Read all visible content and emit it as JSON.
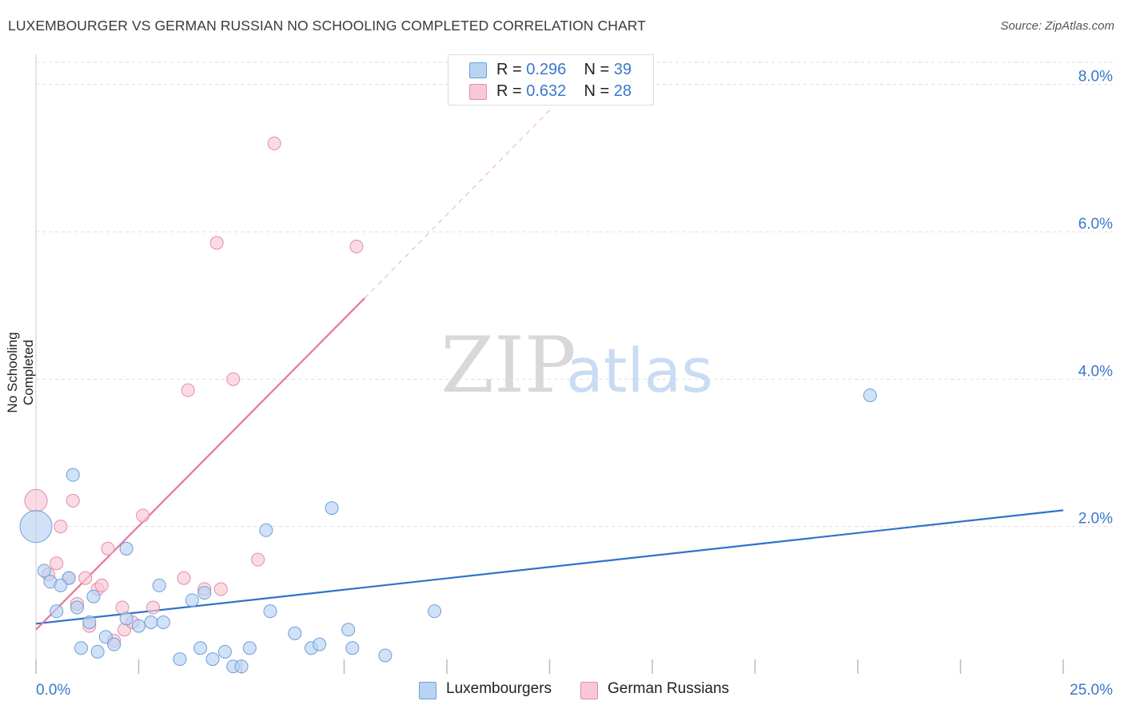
{
  "title": "LUXEMBOURGER VS GERMAN RUSSIAN NO SCHOOLING COMPLETED CORRELATION CHART",
  "source": "Source: ZipAtlas.com",
  "colors": {
    "blue_fill": "#b8d3f3",
    "blue_stroke": "#6c9fd8",
    "blue_line": "#2f72cc",
    "pink_fill": "#f8c8d6",
    "pink_stroke": "#e68aa8",
    "pink_line": "#e8769c",
    "axis_text": "#3a78c9",
    "grid": "#dddddd"
  },
  "legend": {
    "rows": [
      {
        "r_label": "R = ",
        "r_value": "0.296",
        "n_label": "N = ",
        "n_value": "39"
      },
      {
        "r_label": "R = ",
        "r_value": "0.632",
        "n_label": "N = ",
        "n_value": "28"
      }
    ]
  },
  "bottom_legend": {
    "series1": "Luxembourgers",
    "series2": "German Russians"
  },
  "watermark": {
    "part1": "ZIP",
    "part2": "atlas"
  },
  "chart_data": {
    "type": "scatter",
    "title": "LUXEMBOURGER VS GERMAN RUSSIAN NO SCHOOLING COMPLETED CORRELATION CHART",
    "xlabel": "",
    "ylabel": "No Schooling Completed",
    "xlim": [
      0,
      25
    ],
    "ylim": [
      0,
      8.3
    ],
    "x_tick_labels": [
      "0.0%",
      "25.0%"
    ],
    "y_ticks": [
      2,
      4,
      6,
      8
    ],
    "y_tick_labels": [
      "2.0%",
      "4.0%",
      "6.0%",
      "8.0%"
    ],
    "grid": true,
    "series": [
      {
        "name": "Luxembourgers",
        "r": 0.296,
        "n": 39,
        "trend": {
          "x": [
            0,
            25
          ],
          "y": [
            0.68,
            2.22
          ]
        },
        "points": [
          {
            "x": 0.0,
            "y": 2.0,
            "s": 3
          },
          {
            "x": 0.9,
            "y": 2.7,
            "s": 1
          },
          {
            "x": 0.2,
            "y": 1.4,
            "s": 1
          },
          {
            "x": 0.35,
            "y": 1.25,
            "s": 1
          },
          {
            "x": 0.8,
            "y": 1.3,
            "s": 1
          },
          {
            "x": 0.6,
            "y": 1.2,
            "s": 1
          },
          {
            "x": 0.5,
            "y": 0.85,
            "s": 1
          },
          {
            "x": 1.0,
            "y": 0.9,
            "s": 1
          },
          {
            "x": 1.4,
            "y": 1.05,
            "s": 1
          },
          {
            "x": 1.3,
            "y": 0.7,
            "s": 1
          },
          {
            "x": 1.7,
            "y": 0.5,
            "s": 1
          },
          {
            "x": 1.1,
            "y": 0.35,
            "s": 1
          },
          {
            "x": 1.5,
            "y": 0.3,
            "s": 1
          },
          {
            "x": 1.9,
            "y": 0.4,
            "s": 1
          },
          {
            "x": 2.2,
            "y": 0.75,
            "s": 1
          },
          {
            "x": 2.5,
            "y": 0.65,
            "s": 1
          },
          {
            "x": 2.8,
            "y": 0.7,
            "s": 1
          },
          {
            "x": 3.1,
            "y": 0.7,
            "s": 1
          },
          {
            "x": 2.2,
            "y": 1.7,
            "s": 1
          },
          {
            "x": 3.0,
            "y": 1.2,
            "s": 1
          },
          {
            "x": 3.8,
            "y": 1.0,
            "s": 1
          },
          {
            "x": 4.1,
            "y": 1.1,
            "s": 1
          },
          {
            "x": 3.5,
            "y": 0.2,
            "s": 1
          },
          {
            "x": 4.0,
            "y": 0.35,
            "s": 1
          },
          {
            "x": 4.3,
            "y": 0.2,
            "s": 1
          },
          {
            "x": 4.6,
            "y": 0.3,
            "s": 1
          },
          {
            "x": 4.8,
            "y": 0.1,
            "s": 1
          },
          {
            "x": 5.2,
            "y": 0.35,
            "s": 1
          },
          {
            "x": 5.0,
            "y": 0.1,
            "s": 1
          },
          {
            "x": 5.6,
            "y": 1.95,
            "s": 1
          },
          {
            "x": 5.7,
            "y": 0.85,
            "s": 1
          },
          {
            "x": 6.3,
            "y": 0.55,
            "s": 1
          },
          {
            "x": 6.7,
            "y": 0.35,
            "s": 1
          },
          {
            "x": 6.9,
            "y": 0.4,
            "s": 1
          },
          {
            "x": 7.2,
            "y": 2.25,
            "s": 1
          },
          {
            "x": 7.6,
            "y": 0.6,
            "s": 1
          },
          {
            "x": 7.7,
            "y": 0.35,
            "s": 1
          },
          {
            "x": 8.5,
            "y": 0.25,
            "s": 1
          },
          {
            "x": 9.7,
            "y": 0.85,
            "s": 1
          },
          {
            "x": 20.3,
            "y": 3.78,
            "s": 1
          }
        ]
      },
      {
        "name": "German Russians",
        "r": 0.632,
        "n": 28,
        "trend": {
          "x": [
            0,
            8.0
          ],
          "y": [
            0.6,
            5.1
          ]
        },
        "trend_dashed": {
          "x": [
            8.0,
            12.5
          ],
          "y": [
            5.1,
            7.65
          ]
        },
        "points": [
          {
            "x": 0.0,
            "y": 2.35,
            "s": 2
          },
          {
            "x": 0.3,
            "y": 1.35,
            "s": 1
          },
          {
            "x": 0.5,
            "y": 1.5,
            "s": 1
          },
          {
            "x": 0.6,
            "y": 2.0,
            "s": 1
          },
          {
            "x": 0.8,
            "y": 1.3,
            "s": 1
          },
          {
            "x": 0.9,
            "y": 2.35,
            "s": 1
          },
          {
            "x": 1.0,
            "y": 0.95,
            "s": 1
          },
          {
            "x": 1.2,
            "y": 1.3,
            "s": 1
          },
          {
            "x": 1.3,
            "y": 0.65,
            "s": 1
          },
          {
            "x": 1.5,
            "y": 1.15,
            "s": 1
          },
          {
            "x": 1.6,
            "y": 1.2,
            "s": 1
          },
          {
            "x": 1.75,
            "y": 1.7,
            "s": 1
          },
          {
            "x": 1.9,
            "y": 0.45,
            "s": 1
          },
          {
            "x": 2.1,
            "y": 0.9,
            "s": 1
          },
          {
            "x": 2.15,
            "y": 0.6,
            "s": 1
          },
          {
            "x": 2.35,
            "y": 0.7,
            "s": 1
          },
          {
            "x": 2.6,
            "y": 2.15,
            "s": 1
          },
          {
            "x": 2.85,
            "y": 0.9,
            "s": 1
          },
          {
            "x": 3.6,
            "y": 1.3,
            "s": 1
          },
          {
            "x": 3.7,
            "y": 3.85,
            "s": 1
          },
          {
            "x": 4.1,
            "y": 1.15,
            "s": 1
          },
          {
            "x": 4.4,
            "y": 5.85,
            "s": 1
          },
          {
            "x": 4.5,
            "y": 1.15,
            "s": 1
          },
          {
            "x": 4.8,
            "y": 4.0,
            "s": 1
          },
          {
            "x": 5.4,
            "y": 1.55,
            "s": 1
          },
          {
            "x": 5.8,
            "y": 7.2,
            "s": 1
          },
          {
            "x": 7.8,
            "y": 5.8,
            "s": 1
          }
        ]
      }
    ]
  }
}
